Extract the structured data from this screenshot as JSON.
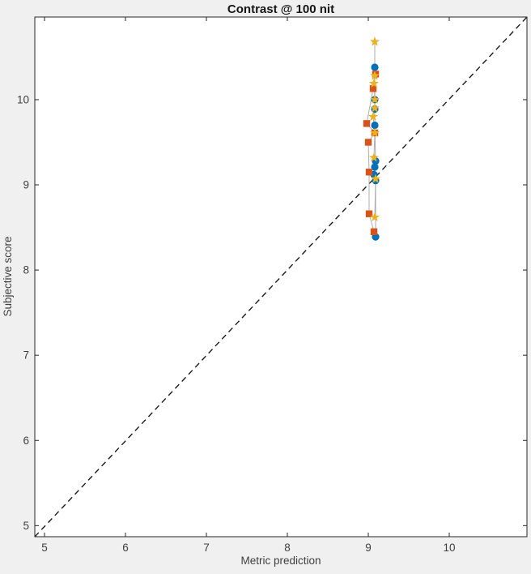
{
  "figure": {
    "background_color": "#f0f0f0",
    "plot_background_color": "#ffffff",
    "axis_color": "#262626",
    "tick_label_color": "#3f3f3f",
    "series_line_color": "#adadad"
  },
  "chart_data": {
    "type": "scatter",
    "title": "Contrast @ 100 nit",
    "xlabel": "Metric prediction",
    "ylabel": "Subjective score",
    "xlim": [
      4.88,
      10.96
    ],
    "ylim": [
      4.87,
      10.97
    ],
    "xticks": [
      5,
      6,
      7,
      8,
      9,
      10
    ],
    "yticks": [
      5,
      6,
      7,
      8,
      9,
      10
    ],
    "grid": false,
    "legend": null,
    "identity_line": {
      "style": "dashed",
      "color": "#1a1a1a",
      "from_xy": [
        4.88,
        4.87
      ],
      "to_xy": [
        10.96,
        10.97
      ]
    },
    "series": [
      {
        "name": "blue-circles",
        "marker": "circle",
        "color": "#0072BD",
        "points": [
          [
            9.08,
            10.38
          ],
          [
            9.08,
            10.0
          ],
          [
            9.08,
            9.89
          ],
          [
            9.08,
            9.7
          ],
          [
            9.09,
            9.28
          ],
          [
            9.08,
            9.21
          ],
          [
            9.07,
            9.12
          ],
          [
            9.09,
            9.05
          ],
          [
            9.09,
            8.39
          ]
        ]
      },
      {
        "name": "orange-squares",
        "marker": "square",
        "color": "#D95319",
        "points": [
          [
            9.09,
            10.3
          ],
          [
            9.06,
            10.13
          ],
          [
            8.98,
            9.72
          ],
          [
            9.08,
            9.61
          ],
          [
            9.0,
            9.5
          ],
          [
            9.01,
            9.15
          ],
          [
            9.01,
            8.66
          ],
          [
            9.07,
            8.45
          ]
        ]
      },
      {
        "name": "yellow-stars",
        "marker": "pentagram",
        "color": "#EDB120",
        "points": [
          [
            9.08,
            10.68
          ],
          [
            9.08,
            10.28
          ],
          [
            9.07,
            10.19
          ],
          [
            9.08,
            10.0
          ],
          [
            9.08,
            9.9
          ],
          [
            9.06,
            9.8
          ],
          [
            9.08,
            9.61
          ],
          [
            9.07,
            9.32
          ],
          [
            9.09,
            9.07
          ],
          [
            9.08,
            8.62
          ]
        ]
      }
    ]
  }
}
